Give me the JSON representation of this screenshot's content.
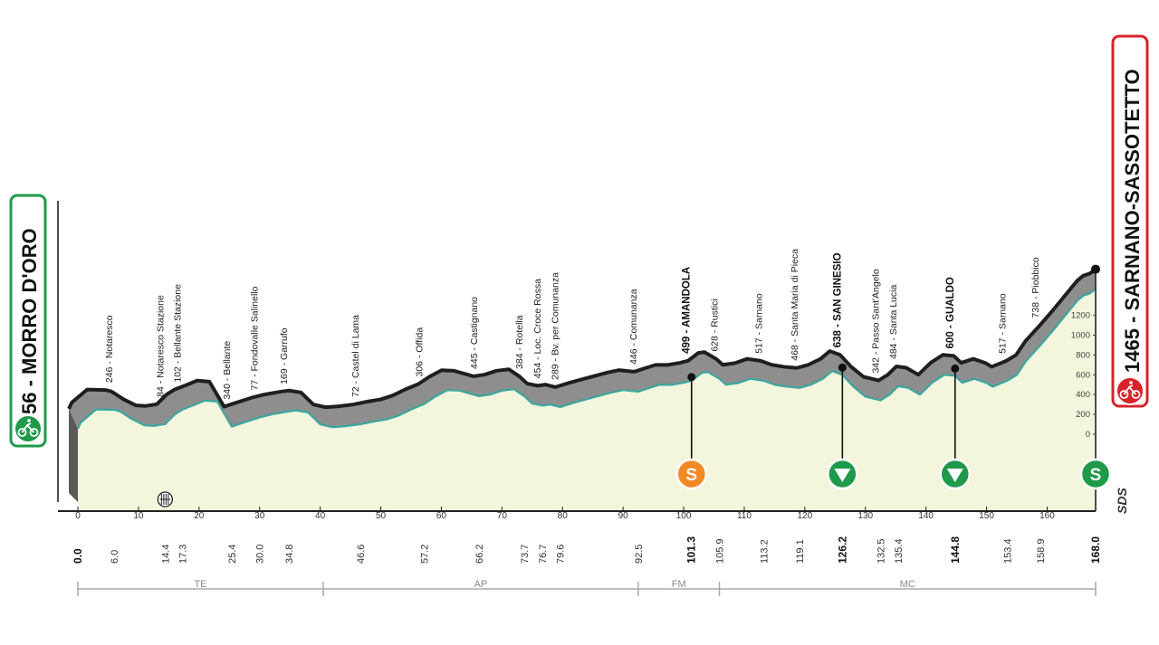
{
  "chart_data": {
    "type": "area",
    "start": {
      "label": "56 - MORRO D'ORO",
      "alt": 56,
      "km": 0.0
    },
    "finish": {
      "label": "1465 - SARNANO-SASSOTETTO",
      "alt": 1465,
      "km": 168.0
    },
    "xlim": [
      0,
      168
    ],
    "ylim": [
      0,
      1500
    ],
    "x_ticks": [
      0,
      10,
      20,
      30,
      40,
      50,
      60,
      70,
      80,
      90,
      100,
      110,
      120,
      130,
      140,
      150,
      160
    ],
    "y_ticks": [
      0,
      200,
      400,
      600,
      800,
      1000,
      1200
    ],
    "profile": [
      [
        0,
        56
      ],
      [
        0.5,
        120
      ],
      [
        3,
        250
      ],
      [
        6,
        246
      ],
      [
        7,
        230
      ],
      [
        9,
        150
      ],
      [
        11,
        90
      ],
      [
        12.5,
        84
      ],
      [
        14.4,
        102
      ],
      [
        16,
        200
      ],
      [
        17.3,
        250
      ],
      [
        19,
        290
      ],
      [
        21,
        340
      ],
      [
        23,
        330
      ],
      [
        25.4,
        77
      ],
      [
        27,
        110
      ],
      [
        30,
        169
      ],
      [
        32,
        200
      ],
      [
        34.8,
        230
      ],
      [
        36,
        240
      ],
      [
        38,
        220
      ],
      [
        40,
        100
      ],
      [
        42,
        72
      ],
      [
        44,
        80
      ],
      [
        46.6,
        100
      ],
      [
        49,
        130
      ],
      [
        51,
        150
      ],
      [
        53,
        190
      ],
      [
        55,
        250
      ],
      [
        57.2,
        306
      ],
      [
        59,
        380
      ],
      [
        61,
        445
      ],
      [
        63,
        440
      ],
      [
        66.2,
        384
      ],
      [
        68,
        400
      ],
      [
        70,
        440
      ],
      [
        72,
        454
      ],
      [
        73.7,
        384
      ],
      [
        75,
        310
      ],
      [
        76.7,
        289
      ],
      [
        78,
        300
      ],
      [
        79.6,
        275
      ],
      [
        82,
        320
      ],
      [
        85,
        370
      ],
      [
        88,
        420
      ],
      [
        90,
        446
      ],
      [
        92.5,
        430
      ],
      [
        94,
        460
      ],
      [
        96,
        499
      ],
      [
        98,
        499
      ],
      [
        100,
        520
      ],
      [
        101.3,
        540
      ],
      [
        103,
        620
      ],
      [
        104,
        628
      ],
      [
        105.9,
        560
      ],
      [
        107,
        500
      ],
      [
        109,
        517
      ],
      [
        111,
        560
      ],
      [
        113.2,
        540
      ],
      [
        115,
        500
      ],
      [
        117,
        480
      ],
      [
        119.1,
        468
      ],
      [
        121,
        500
      ],
      [
        123,
        560
      ],
      [
        124.5,
        638
      ],
      [
        126.2,
        600
      ],
      [
        128,
        480
      ],
      [
        130,
        380
      ],
      [
        132.5,
        342
      ],
      [
        134,
        400
      ],
      [
        135.4,
        484
      ],
      [
        137,
        470
      ],
      [
        139,
        400
      ],
      [
        141,
        520
      ],
      [
        143,
        600
      ],
      [
        144.8,
        590
      ],
      [
        146,
        520
      ],
      [
        148,
        560
      ],
      [
        150,
        517
      ],
      [
        151,
        480
      ],
      [
        153.4,
        540
      ],
      [
        155,
        600
      ],
      [
        156.5,
        738
      ],
      [
        158.9,
        900
      ],
      [
        161,
        1050
      ],
      [
        163,
        1200
      ],
      [
        165,
        1350
      ],
      [
        166,
        1400
      ],
      [
        167,
        1420
      ],
      [
        168,
        1465
      ]
    ],
    "waypoints": [
      {
        "km": 6.0,
        "alt": 246,
        "name": "246 - Notaresco",
        "bold": false
      },
      {
        "km": 14.4,
        "alt": 84,
        "name": "84 - Notaresco Stazione",
        "bold": false
      },
      {
        "km": 17.3,
        "alt": 102,
        "name": "102 - Bellante Stazione",
        "bold": false
      },
      {
        "km": 25.4,
        "alt": 340,
        "name": "340 - Bellante",
        "bold": false
      },
      {
        "km": 30.0,
        "alt": 77,
        "name": "77 - Fondovalle Salinello",
        "bold": false
      },
      {
        "km": 34.8,
        "alt": 169,
        "name": "169 - Garrufo",
        "bold": false
      },
      {
        "km": 46.6,
        "alt": 72,
        "name": "72 - Castel di Lama",
        "bold": false
      },
      {
        "km": 57.2,
        "alt": 306,
        "name": "306 - Offida",
        "bold": false
      },
      {
        "km": 66.2,
        "alt": 445,
        "name": "445 - Castignano",
        "bold": false
      },
      {
        "km": 73.7,
        "alt": 384,
        "name": "384 - Rotella",
        "bold": false
      },
      {
        "km": 76.7,
        "alt": 454,
        "name": "454 - Loc. Croce Rossa",
        "bold": false
      },
      {
        "km": 79.6,
        "alt": 289,
        "name": "289 - Bv. per Comunanza",
        "bold": false
      },
      {
        "km": 92.5,
        "alt": 446,
        "name": "446 - Comunanza",
        "bold": false
      },
      {
        "km": 101.3,
        "alt": 499,
        "name": "499 - AMANDOLA",
        "bold": true
      },
      {
        "km": 105.9,
        "alt": 628,
        "name": "628 - Rustici",
        "bold": false
      },
      {
        "km": 113.2,
        "alt": 517,
        "name": "517 - Sarnano",
        "bold": false
      },
      {
        "km": 119.1,
        "alt": 468,
        "name": "468 - Santa Maria di Pieca",
        "bold": false
      },
      {
        "km": 126.2,
        "alt": 638,
        "name": "638 - SAN GINESIO",
        "bold": true
      },
      {
        "km": 132.5,
        "alt": 342,
        "name": "342 - Passo Sant'Angelo",
        "bold": false
      },
      {
        "km": 135.4,
        "alt": 484,
        "name": "484 - Santa Lucia",
        "bold": false
      },
      {
        "km": 144.8,
        "alt": 600,
        "name": "600 - GUALDO",
        "bold": true
      },
      {
        "km": 153.4,
        "alt": 517,
        "name": "517 - Sarnano",
        "bold": false
      },
      {
        "km": 158.9,
        "alt": 738,
        "name": "738 - Piobbico",
        "bold": false
      }
    ],
    "km_labels": [
      {
        "km": 0.0,
        "text": "0.0",
        "bold": true
      },
      {
        "km": 6.0,
        "text": "6.0",
        "bold": false
      },
      {
        "km": 14.4,
        "text": "14.4",
        "bold": false
      },
      {
        "km": 17.3,
        "text": "17.3",
        "bold": false
      },
      {
        "km": 25.4,
        "text": "25.4",
        "bold": false
      },
      {
        "km": 30.0,
        "text": "30.0",
        "bold": false
      },
      {
        "km": 34.8,
        "text": "34.8",
        "bold": false
      },
      {
        "km": 46.6,
        "text": "46.6",
        "bold": false
      },
      {
        "km": 57.2,
        "text": "57.2",
        "bold": false
      },
      {
        "km": 66.2,
        "text": "66.2",
        "bold": false
      },
      {
        "km": 73.7,
        "text": "73.7",
        "bold": false
      },
      {
        "km": 76.7,
        "text": "76.7",
        "bold": false
      },
      {
        "km": 79.6,
        "text": "79.6",
        "bold": false
      },
      {
        "km": 92.5,
        "text": "92.5",
        "bold": false
      },
      {
        "km": 101.3,
        "text": "101.3",
        "bold": true
      },
      {
        "km": 105.9,
        "text": "105.9",
        "bold": false
      },
      {
        "km": 113.2,
        "text": "113.2",
        "bold": false
      },
      {
        "km": 119.1,
        "text": "119.1",
        "bold": false
      },
      {
        "km": 126.2,
        "text": "126.2",
        "bold": true
      },
      {
        "km": 132.5,
        "text": "132.5",
        "bold": false
      },
      {
        "km": 135.4,
        "text": "135.4",
        "bold": false
      },
      {
        "km": 144.8,
        "text": "144.8",
        "bold": true
      },
      {
        "km": 153.4,
        "text": "153.4",
        "bold": false
      },
      {
        "km": 158.9,
        "text": "158.9",
        "bold": false
      },
      {
        "km": 168.0,
        "text": "168.0",
        "bold": true
      }
    ],
    "markers": [
      {
        "km": 101.3,
        "type": "sprint",
        "icon": "sprint-icon",
        "glyph": "S",
        "color": "#f08a24"
      },
      {
        "km": 126.2,
        "type": "feed",
        "icon": "feed-zone-icon",
        "glyph": "",
        "color": "#1f9a4a"
      },
      {
        "km": 144.8,
        "type": "feed",
        "icon": "feed-zone-icon",
        "glyph": "",
        "color": "#1f9a4a"
      },
      {
        "km": 168.0,
        "type": "finish-sprint",
        "icon": "finish-s-icon",
        "glyph": "S",
        "color": "#1f9a4a"
      }
    ],
    "level_crossing_km": 14.4,
    "provinces": [
      {
        "name": "TE",
        "from": 0,
        "to": 40.5
      },
      {
        "name": "AP",
        "from": 40.5,
        "to": 92.5
      },
      {
        "name": "FM",
        "from": 92.5,
        "to": 105.9
      },
      {
        "name": "MC",
        "from": 105.9,
        "to": 168
      }
    ],
    "brand": "SDS",
    "colors": {
      "ridge": "#1f1f1f",
      "shadow": "#8e8e8e",
      "fill": "#f3f5dc",
      "edge": "#3aa6a0",
      "start": "#1f9a4a",
      "finish": "#d8222a"
    }
  }
}
